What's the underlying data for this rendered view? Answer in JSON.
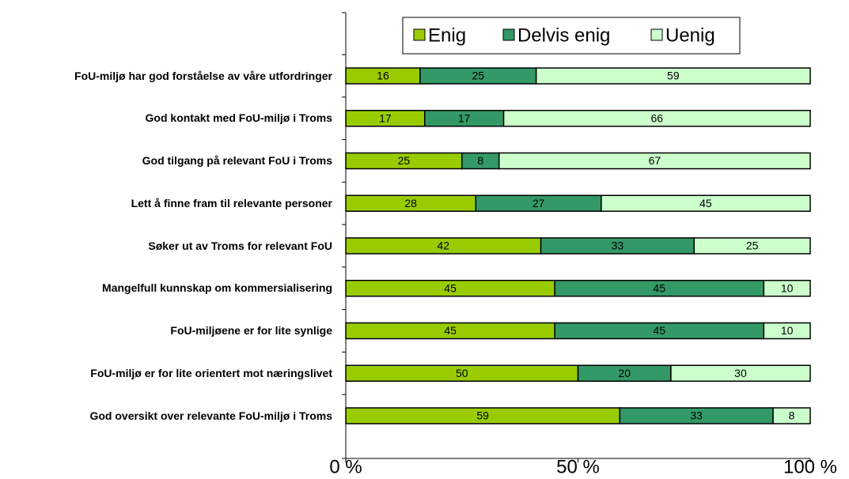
{
  "chart_data": {
    "type": "stacked_barh",
    "categories": [
      "FoU-miljø har god forståelse av våre utfordringer",
      "God kontakt med FoU-miljø i Troms",
      "God tilgang på relevant FoU i Troms",
      "Lett å finne fram til relevante personer",
      "Søker ut av Troms for relevant FoU",
      "Mangelfull kunnskap om kommersialisering",
      "FoU-miljøene er for lite synlige",
      "FoU-miljø er for lite orientert mot næringslivet",
      "God oversikt over relevante FoU-miljø i Troms"
    ],
    "series": [
      {
        "name": "Enig",
        "color": "#99cc00",
        "values": [
          16,
          17,
          25,
          28,
          42,
          45,
          45,
          50,
          59
        ]
      },
      {
        "name": "Delvis enig",
        "color": "#339966",
        "values": [
          25,
          17,
          8,
          27,
          33,
          45,
          45,
          20,
          33
        ]
      },
      {
        "name": "Uenig",
        "color": "#ccffcc",
        "values": [
          59,
          66,
          67,
          45,
          25,
          10,
          10,
          30,
          8
        ]
      }
    ],
    "xlim": [
      0,
      100
    ],
    "xticks": [
      {
        "value": 0,
        "label": "0 %"
      },
      {
        "value": 50,
        "label": "50 %"
      },
      {
        "value": 100,
        "label": "100 %"
      }
    ],
    "legend": "top"
  }
}
